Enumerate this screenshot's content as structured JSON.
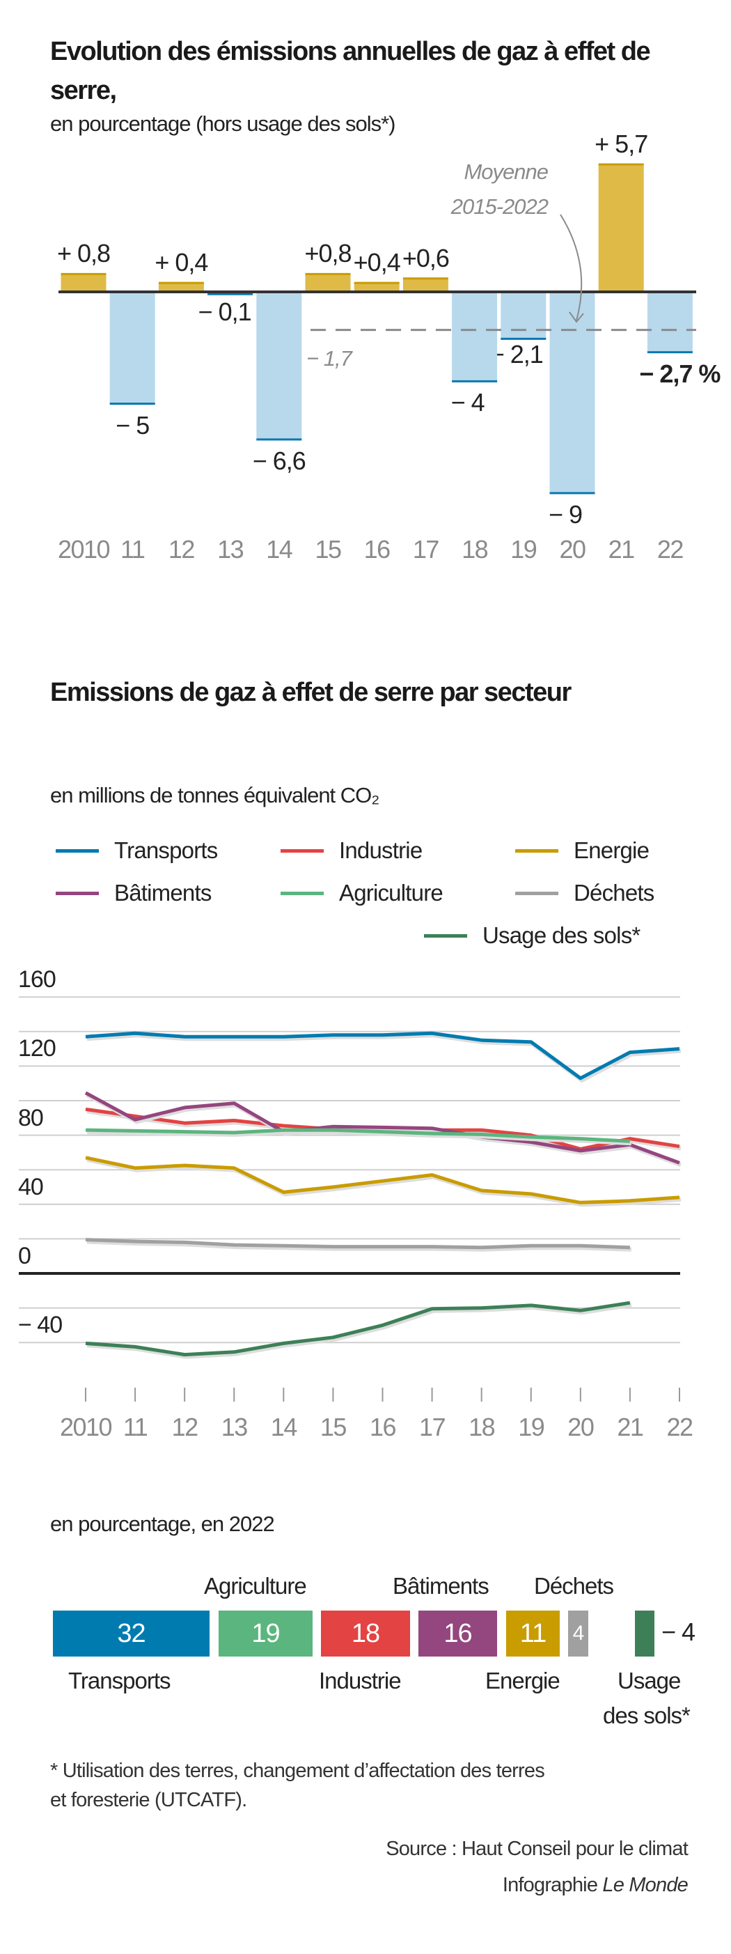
{
  "chart_data": [
    {
      "type": "bar",
      "title": "Evolution des émissions annuelles de gaz à effet de serre,",
      "subtitle": "en pourcentage (hors usage des sols*)",
      "categories": [
        "2010",
        "11",
        "12",
        "13",
        "14",
        "15",
        "16",
        "17",
        "18",
        "19",
        "20",
        "21",
        "22"
      ],
      "values": [
        0.8,
        -5,
        0.4,
        -0.1,
        -6.6,
        0.8,
        0.4,
        0.6,
        -4,
        -2.1,
        -9,
        5.7,
        -2.7
      ],
      "value_labels": [
        "+ 0,8",
        "− 5",
        "+ 0,4",
        "− 0,1",
        "− 6,6",
        "+0,8",
        "+0,4",
        "+0,6",
        "− 4",
        "− 2,1",
        "− 9",
        "+ 5,7",
        "− 2,7 %"
      ],
      "average": {
        "value": -1.7,
        "label": "− 1,7",
        "annotation_line1": "Moyenne",
        "annotation_line2": "2015-2022",
        "from": "15",
        "to": "22"
      },
      "colors": {
        "positive": "#dfba47",
        "negative": "#b8d8ec",
        "positive_edge": "#c99c00",
        "negative_edge": "#0a78b0",
        "average": "#8a8a8a"
      },
      "ylim": [
        -9,
        5.7
      ]
    },
    {
      "type": "line",
      "title": "Emissions de gaz à effet de serre par secteur",
      "unit_label": "en millions de tonnes équivalent CO₂",
      "x": [
        "2010",
        "11",
        "12",
        "13",
        "14",
        "15",
        "16",
        "17",
        "18",
        "19",
        "20",
        "21",
        "22"
      ],
      "ylim": [
        -60,
        160
      ],
      "yticks": [
        160,
        120,
        80,
        40,
        0,
        -40
      ],
      "ytick_labels": [
        "160",
        "120",
        "80",
        "40",
        "0",
        "− 40"
      ],
      "grid_step": 20,
      "grid": true,
      "series": [
        {
          "name": "Transports",
          "color": "#007bb0",
          "values": [
            137,
            139,
            137,
            137,
            137,
            138,
            138,
            139,
            135,
            134,
            113,
            128,
            130
          ]
        },
        {
          "name": "Industrie",
          "color": "#e34343",
          "values": [
            95,
            91,
            87,
            88.5,
            85.5,
            83.5,
            83,
            83,
            83,
            80,
            72,
            78,
            73.5
          ]
        },
        {
          "name": "Energie",
          "color": "#c99c00",
          "values": [
            67,
            61,
            62.5,
            61,
            47,
            50,
            53.5,
            57,
            48,
            46,
            41,
            42,
            44
          ]
        },
        {
          "name": "Bâtiments",
          "color": "#94467e",
          "values": [
            104.5,
            89,
            96,
            98.5,
            82,
            85,
            84.5,
            84,
            79,
            76,
            71,
            74.5,
            64
          ]
        },
        {
          "name": "Agriculture",
          "color": "#5bb57e",
          "values": [
            83,
            82.5,
            82,
            81.5,
            83,
            83,
            82,
            81,
            80.5,
            79,
            78,
            76.5,
            null
          ]
        },
        {
          "name": "Déchets",
          "color": "#a0a0a0",
          "values": [
            19.5,
            18.5,
            18,
            16.5,
            16,
            15.5,
            15.5,
            15.5,
            15,
            16,
            16,
            15,
            null
          ]
        },
        {
          "name": "Usage des sols*",
          "color": "#3d8058",
          "values": [
            -40.5,
            -42.5,
            -47,
            -45.5,
            -40.5,
            -37,
            -30,
            -20.5,
            -20,
            -18.5,
            -21.5,
            -17,
            null
          ]
        }
      ]
    },
    {
      "type": "bar",
      "subtitle": "en pourcentage, en 2022",
      "categories": [
        "Transports",
        "Agriculture",
        "Industrie",
        "Bâtiments",
        "Energie",
        "Déchets",
        "Usage des sols*"
      ],
      "values": [
        32,
        19,
        18,
        16,
        11,
        4,
        -4
      ],
      "value_labels": [
        "32",
        "19",
        "18",
        "16",
        "11",
        "4",
        "− 4"
      ],
      "label_lines": {
        "usage_line1": "Usage",
        "usage_line2": "des sols*"
      },
      "colors": [
        "#007bb0",
        "#5bb57e",
        "#e34343",
        "#94467e",
        "#c99c00",
        "#a0a0a0",
        "#3d8058"
      ]
    }
  ],
  "footnote": {
    "line1": "* Utilisation des terres, changement d’affectation des terres",
    "line2": "et foresterie (UTCATF)."
  },
  "credits": {
    "source": "Source : Haut Conseil pour le climat",
    "infographie": "Infographie ",
    "publisher": "Le Monde"
  }
}
